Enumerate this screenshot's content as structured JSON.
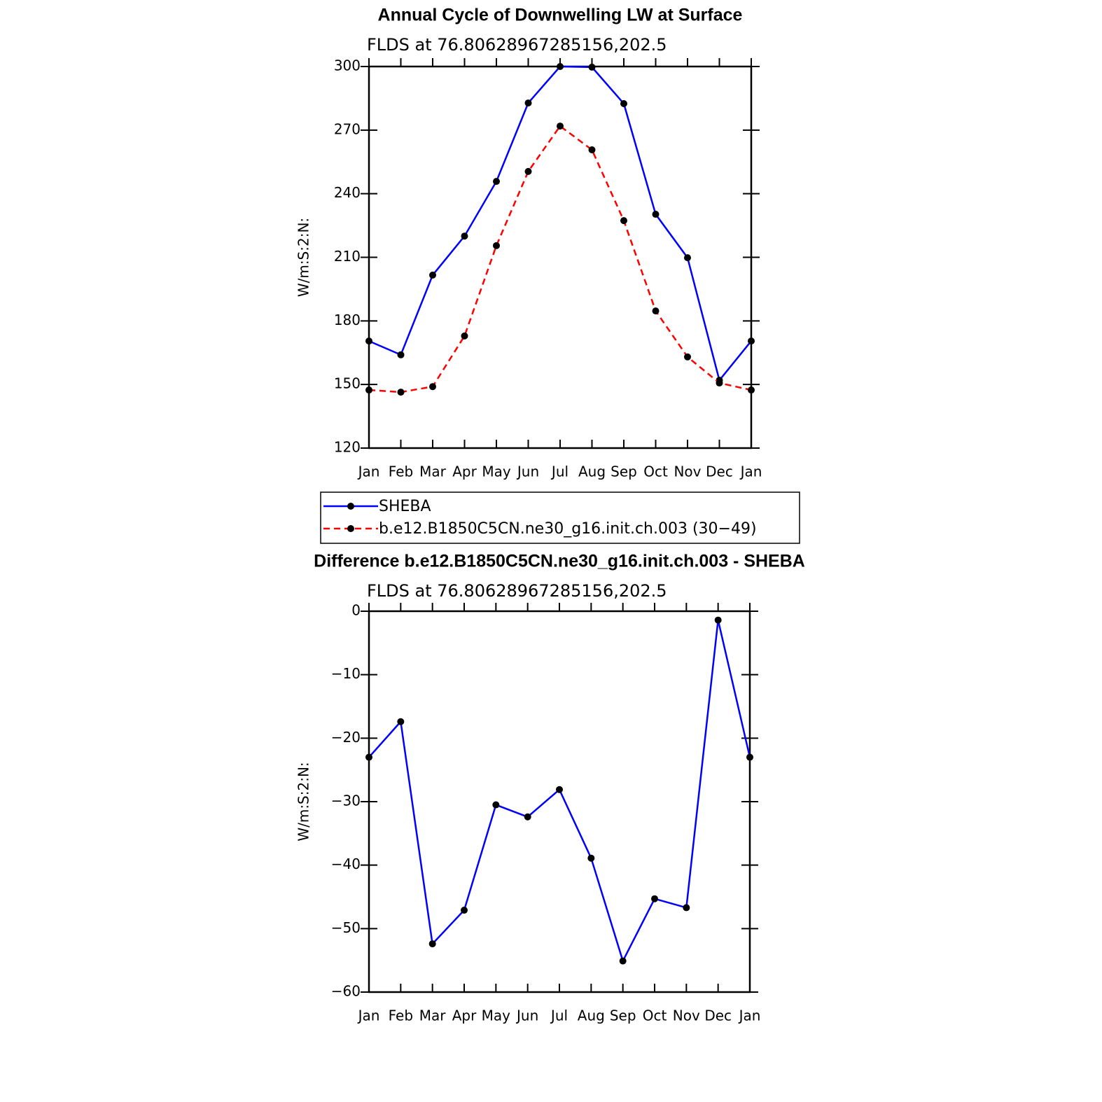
{
  "chart_data": [
    {
      "type": "line",
      "title": "Annual Cycle of Downwelling LW at Surface",
      "subtitle": "FLDS at 76.80628967285156,202.5",
      "y_label": "W/m:S:2:N:",
      "categories": [
        "Jan",
        "Feb",
        "Mar",
        "Apr",
        "May",
        "Jun",
        "Jul",
        "Aug",
        "Sep",
        "Oct",
        "Nov",
        "Dec",
        "Jan"
      ],
      "series": [
        {
          "name": "SHEBA",
          "color": "#0000ff",
          "style": "solid",
          "values": [
            170.5,
            164,
            201.6,
            220,
            245.8,
            282.8,
            300,
            299.7,
            282.5,
            230.3,
            209.8,
            152,
            170.5
          ]
        },
        {
          "name": "b.e12.B1850C5CN.ne30_g16.init.ch.003 (30−49)",
          "color": "#ff0000",
          "style": "dashed",
          "values": [
            147.4,
            146.4,
            149,
            172.9,
            215.5,
            250.5,
            271.9,
            260.7,
            227.3,
            184.7,
            163,
            150.7,
            147.4
          ]
        }
      ],
      "ylim": [
        120,
        300
      ],
      "yticks": [
        120,
        150,
        180,
        210,
        240,
        270,
        300
      ],
      "legend": "below"
    },
    {
      "type": "line",
      "title": "Difference b.e12.B1850C5CN.ne30_g16.init.ch.003 - SHEBA",
      "subtitle": "FLDS at 76.80628967285156,202.5",
      "y_label": "W/m:S:2:N:",
      "categories": [
        "Jan",
        "Feb",
        "Mar",
        "Apr",
        "May",
        "Jun",
        "Jul",
        "Aug",
        "Sep",
        "Oct",
        "Nov",
        "Dec",
        "Jan"
      ],
      "color": "#0000ff",
      "values": [
        -23,
        -17.4,
        -52.4,
        -47.1,
        -30.5,
        -32.4,
        -28.1,
        -38.9,
        -55.1,
        -45.3,
        -46.7,
        -1.4,
        -23
      ],
      "ylim": [
        -60,
        0
      ],
      "yticks": [
        {
          "value": -60,
          "label": "−60"
        },
        {
          "value": -50,
          "label": "−50"
        },
        {
          "value": -40,
          "label": "−40"
        },
        {
          "value": -30,
          "label": "−30"
        },
        {
          "value": -20,
          "label": "−20"
        },
        {
          "value": -10,
          "label": "−10"
        },
        0
      ]
    }
  ]
}
